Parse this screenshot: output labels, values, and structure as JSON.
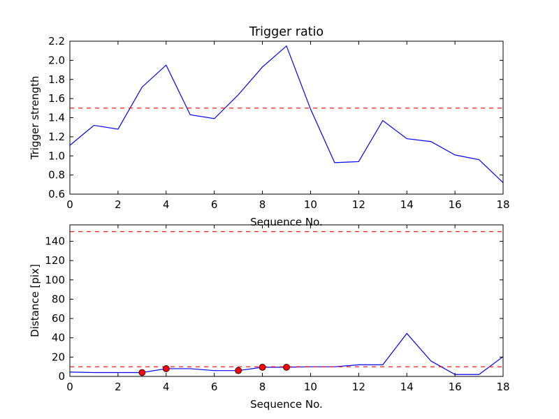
{
  "chart_data": [
    {
      "type": "line",
      "title": "Trigger ratio",
      "xlabel": "Sequence No.",
      "ylabel": "Trigger strength",
      "xlim": [
        0,
        18
      ],
      "ylim": [
        0.6,
        2.2
      ],
      "xticks": [
        0,
        2,
        4,
        6,
        8,
        10,
        12,
        14,
        16,
        18
      ],
      "xtick_labels": [
        "0",
        "2",
        "4",
        "6",
        "8",
        "10",
        "12",
        "14",
        "16",
        "18"
      ],
      "yticks": [
        0.6,
        0.8,
        1.0,
        1.2,
        1.4,
        1.6,
        1.8,
        2.0,
        2.2
      ],
      "ytick_labels": [
        "0.6",
        "0.8",
        "1.0",
        "1.2",
        "1.4",
        "1.6",
        "1.8",
        "2.0",
        "2.2"
      ],
      "grid": false,
      "series": [
        {
          "color": "#0000ff",
          "x": [
            0,
            1,
            2,
            3,
            4,
            5,
            6,
            7,
            8,
            9,
            10,
            11,
            12,
            13,
            14,
            15,
            16,
            17,
            18
          ],
          "y": [
            1.11,
            1.32,
            1.28,
            1.72,
            1.95,
            1.43,
            1.39,
            1.64,
            1.93,
            2.15,
            1.49,
            0.93,
            0.94,
            1.37,
            1.18,
            1.15,
            1.01,
            0.96,
            0.72
          ]
        }
      ],
      "hlines": [
        {
          "y": 1.5,
          "color": "#ff0000",
          "style": "dashed"
        }
      ]
    },
    {
      "type": "line",
      "title": "",
      "xlabel": "Sequence No.",
      "ylabel": "Distance [pix]",
      "xlim": [
        0,
        18
      ],
      "ylim": [
        0,
        157
      ],
      "xticks": [
        0,
        2,
        4,
        6,
        8,
        10,
        12,
        14,
        16,
        18
      ],
      "xtick_labels": [
        "0",
        "2",
        "4",
        "6",
        "8",
        "10",
        "12",
        "14",
        "16",
        "18"
      ],
      "yticks": [
        0,
        20,
        40,
        60,
        80,
        100,
        120,
        140
      ],
      "ytick_labels": [
        "0",
        "20",
        "40",
        "60",
        "80",
        "100",
        "120",
        "140"
      ],
      "grid": false,
      "series": [
        {
          "color": "#0000ff",
          "x": [
            0,
            1,
            2,
            3,
            4,
            5,
            6,
            7,
            8,
            9,
            10,
            11,
            12,
            13,
            14,
            15,
            16,
            17,
            18
          ],
          "y": [
            4.5,
            4,
            4,
            4,
            8,
            8,
            6,
            6,
            9.5,
            9.5,
            10,
            10,
            12,
            12,
            44.5,
            16,
            2,
            2,
            20.5
          ]
        }
      ],
      "markers": {
        "color": "#ff0000",
        "x": [
          3,
          4,
          7,
          8,
          9
        ],
        "y": [
          4,
          8,
          6,
          9.5,
          9.5
        ]
      },
      "hlines": [
        {
          "y": 150,
          "color": "#ff0000",
          "style": "dashed"
        },
        {
          "y": 10,
          "color": "#ff0000",
          "style": "dashed"
        }
      ]
    }
  ]
}
